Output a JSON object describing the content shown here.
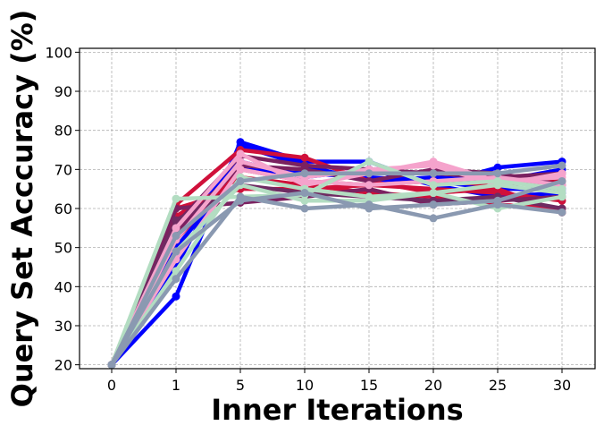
{
  "chart_data": {
    "type": "line",
    "title": "",
    "xlabel": "Inner Iterations",
    "ylabel": "Query Set Acccuracy (%)",
    "x": [
      "0",
      "1",
      "5",
      "10",
      "15",
      "20",
      "25",
      "30"
    ],
    "ylim": [
      19,
      101
    ],
    "yticks": [
      "20",
      "30",
      "40",
      "50",
      "60",
      "70",
      "80",
      "90",
      "100"
    ],
    "grid": true,
    "legend": "none",
    "series": [
      {
        "color": "#0000ff",
        "values": [
          20,
          37.5,
          77,
          72,
          72,
          66,
          70.5,
          72
        ]
      },
      {
        "color": "#0000ff",
        "values": [
          20,
          45,
          76,
          71,
          67,
          68,
          67,
          70
        ]
      },
      {
        "color": "#0000ff",
        "values": [
          20,
          50,
          70,
          69,
          68,
          67,
          65,
          65
        ]
      },
      {
        "color": "#0000ff",
        "values": [
          20,
          55,
          72,
          68,
          70,
          66,
          63,
          64
        ]
      },
      {
        "color": "#d0103a",
        "values": [
          20,
          61,
          75,
          73,
          67,
          64,
          65,
          59
        ]
      },
      {
        "color": "#d0103a",
        "values": [
          20,
          58,
          68,
          66,
          64,
          63,
          61,
          60
        ]
      },
      {
        "color": "#d0103a",
        "values": [
          20,
          60,
          65,
          65,
          66,
          67,
          66,
          67
        ]
      },
      {
        "color": "#d0103a",
        "values": [
          20,
          52,
          70,
          67,
          66,
          65,
          64,
          62
        ]
      },
      {
        "color": "#7b2160",
        "values": [
          20,
          56,
          73.5,
          71,
          70,
          69,
          68,
          69
        ]
      },
      {
        "color": "#7b2160",
        "values": [
          20,
          60,
          61.5,
          63,
          65,
          61,
          62,
          63
        ]
      },
      {
        "color": "#7b2160",
        "values": [
          20,
          54,
          71,
          70,
          67,
          70,
          69,
          66
        ]
      },
      {
        "color": "#6f2b62",
        "values": [
          20,
          57,
          66,
          64,
          63,
          62,
          63,
          60
        ]
      },
      {
        "color": "#f5a3cc",
        "values": [
          20,
          55,
          74,
          66,
          69,
          72,
          67,
          68
        ]
      },
      {
        "color": "#f5a3cc",
        "values": [
          20,
          52,
          72,
          68,
          70,
          71,
          66,
          69
        ]
      },
      {
        "color": "#f5a3cc",
        "values": [
          20,
          47,
          70,
          67,
          66,
          67,
          68,
          66
        ]
      },
      {
        "color": "#b3ddc2",
        "values": [
          20,
          62.5,
          63,
          63.5,
          72,
          66,
          67,
          65
        ]
      },
      {
        "color": "#b3ddc2",
        "values": [
          20,
          49,
          66,
          62,
          62,
          64,
          60,
          63
        ]
      },
      {
        "color": "#b3ddc2",
        "values": [
          20,
          44,
          68,
          65,
          63,
          64,
          66,
          64
        ]
      },
      {
        "color": "#8a99b1",
        "values": [
          20,
          42,
          63,
          60,
          61,
          57.5,
          61,
          59
        ]
      },
      {
        "color": "#8a99b1",
        "values": [
          20,
          53,
          67,
          69,
          69,
          69,
          69,
          71
        ]
      },
      {
        "color": "#8a99b1",
        "values": [
          20,
          49,
          62,
          64,
          60,
          61,
          62,
          67
        ]
      }
    ]
  }
}
